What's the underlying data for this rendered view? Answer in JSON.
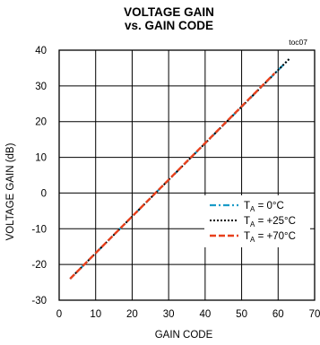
{
  "chart_data": {
    "type": "line",
    "title": "VOLTAGE GAIN",
    "subtitle": "vs.  GAIN CODE",
    "tag": "toc07",
    "xlabel": "GAIN CODE",
    "ylabel": "VOLTAGE GAIN (dB)",
    "xlim": [
      0,
      70
    ],
    "ylim": [
      -30,
      40
    ],
    "xticks": [
      0,
      10,
      20,
      30,
      40,
      50,
      60,
      70
    ],
    "yticks": [
      -30,
      -20,
      -10,
      0,
      10,
      20,
      30,
      40
    ],
    "grid": true,
    "legend_position": "bottom-right",
    "series": [
      {
        "name_main": "T",
        "name_sub": "A",
        "name_rest": " = 0°C",
        "color": "#1a9bc8",
        "style": "dash-dot",
        "x": [
          3,
          63
        ],
        "y": [
          -24,
          37.5
        ]
      },
      {
        "name_main": "T",
        "name_sub": "A",
        "name_rest": " = +25°C",
        "color": "#000000",
        "style": "dotted",
        "x": [
          3,
          63
        ],
        "y": [
          -24,
          37.5
        ]
      },
      {
        "name_main": "T",
        "name_sub": "A",
        "name_rest": " = +70°C",
        "color": "#e8401c",
        "style": "dash",
        "x": [
          3,
          59
        ],
        "y": [
          -24,
          33.5
        ]
      }
    ]
  }
}
